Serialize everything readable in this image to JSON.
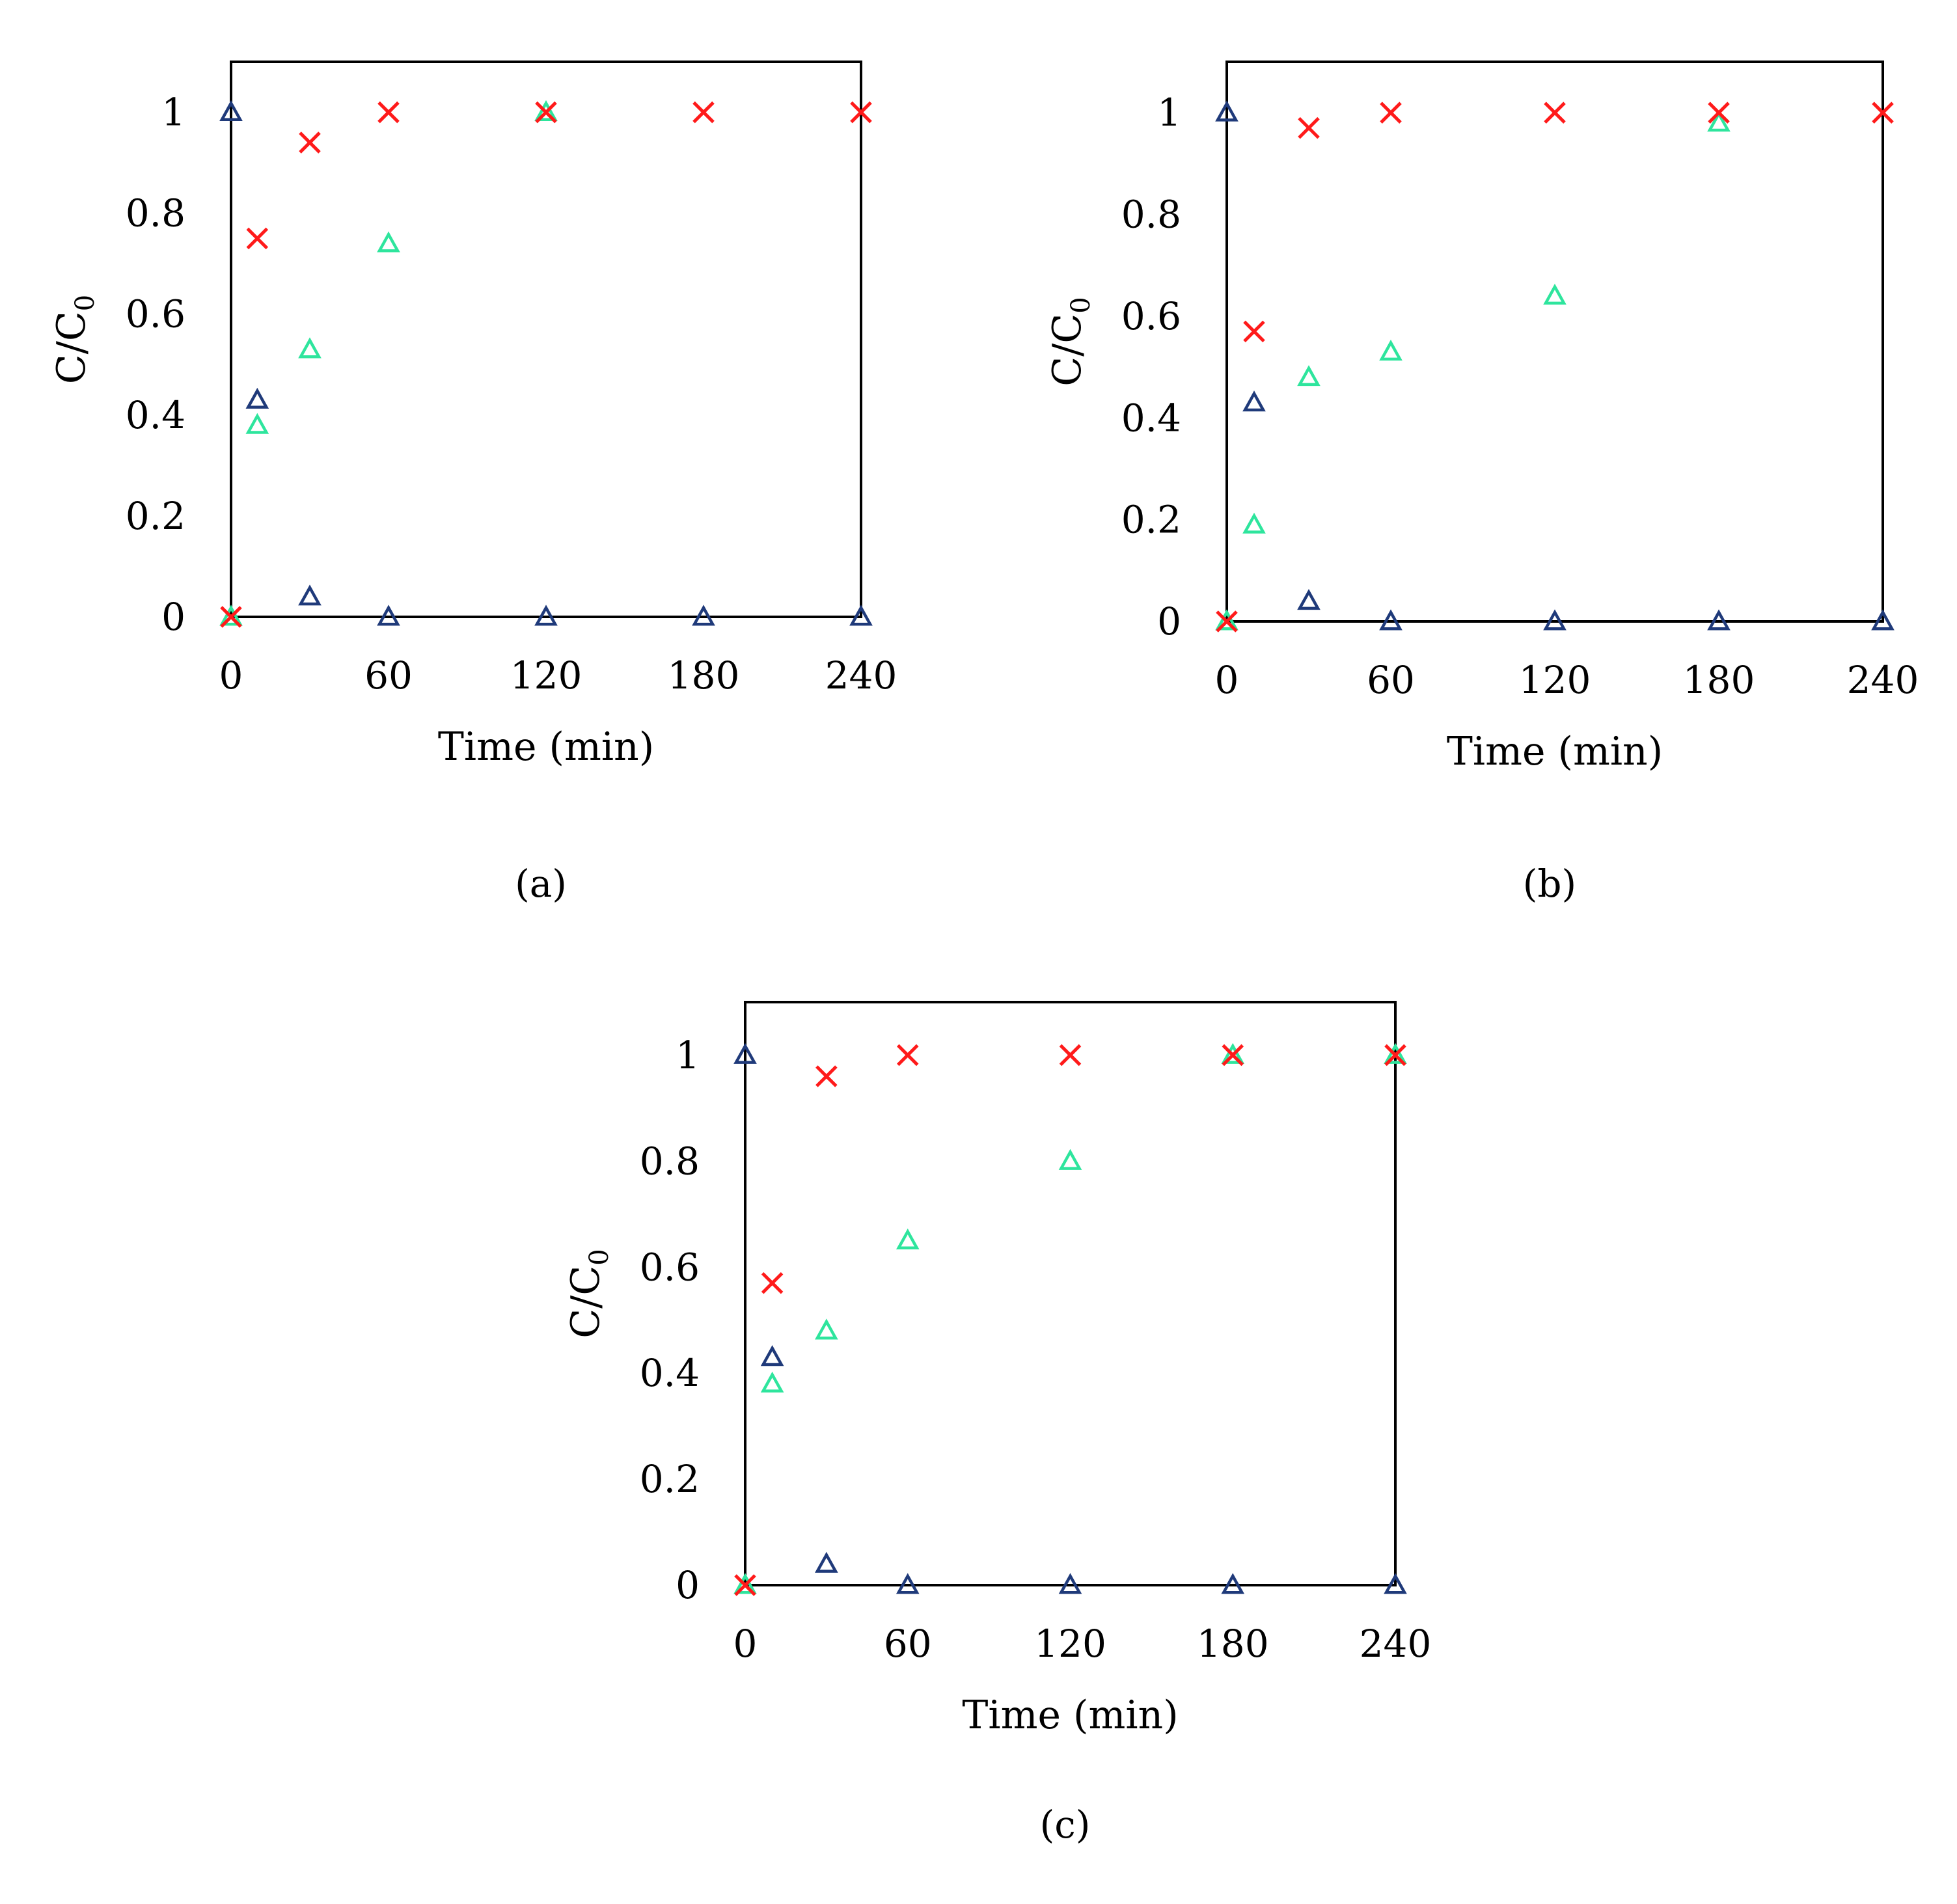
{
  "figure": {
    "colors": {
      "series_triangle_navy": "#1f3a7a",
      "series_triangle_green": "#2ee59d",
      "series_cross_red": "#ff1a1a",
      "axes": "#000000"
    }
  },
  "chart_data": [
    {
      "type": "scatter",
      "panel_label": "(a)",
      "xlabel": "Time  (min)",
      "ylabel": "C/C",
      "ylabel_subscript": "0",
      "xlim": [
        0,
        240
      ],
      "ylim": [
        0,
        1.1
      ],
      "xticks": [
        0,
        60,
        120,
        180,
        240
      ],
      "xtick_labels": [
        "0",
        "60",
        "120",
        "180",
        "240"
      ],
      "yticks": [
        0,
        0.2,
        0.4,
        0.6,
        0.8,
        1
      ],
      "ytick_labels": [
        "0",
        "0.2",
        "0.4",
        "0.6",
        "0.8",
        "1"
      ],
      "grid": false,
      "series": [
        {
          "marker": "triangle-open",
          "color": "#1f3a7a",
          "points": [
            [
              0,
              1.0
            ],
            [
              10,
              0.43
            ],
            [
              30,
              0.04
            ],
            [
              60,
              0.0
            ],
            [
              120,
              0.0
            ],
            [
              180,
              0.0
            ],
            [
              240,
              0.0
            ]
          ]
        },
        {
          "marker": "triangle-open",
          "color": "#2ee59d",
          "points": [
            [
              0,
              0.0
            ],
            [
              10,
              0.38
            ],
            [
              30,
              0.53
            ],
            [
              60,
              0.74
            ],
            [
              120,
              1.0
            ]
          ]
        },
        {
          "marker": "cross",
          "color": "#ff1a1a",
          "points": [
            [
              0,
              0.0
            ],
            [
              10,
              0.75
            ],
            [
              30,
              0.94
            ],
            [
              60,
              1.0
            ],
            [
              120,
              1.0
            ],
            [
              180,
              1.0
            ],
            [
              240,
              1.0
            ]
          ]
        }
      ]
    },
    {
      "type": "scatter",
      "panel_label": "(b)",
      "xlabel": "Time  (min)",
      "ylabel": "C/C",
      "ylabel_subscript": "0",
      "xlim": [
        0,
        240
      ],
      "ylim": [
        0,
        1.1
      ],
      "xticks": [
        0,
        60,
        120,
        180,
        240
      ],
      "xtick_labels": [
        "0",
        "60",
        "120",
        "180",
        "240"
      ],
      "yticks": [
        0,
        0.2,
        0.4,
        0.6,
        0.8,
        1
      ],
      "ytick_labels": [
        "0",
        "0.2",
        "0.4",
        "0.6",
        "0.8",
        "1"
      ],
      "grid": false,
      "series": [
        {
          "marker": "triangle-open",
          "color": "#1f3a7a",
          "points": [
            [
              0,
              1.0
            ],
            [
              10,
              0.43
            ],
            [
              30,
              0.04
            ],
            [
              60,
              0.0
            ],
            [
              120,
              0.0
            ],
            [
              180,
              0.0
            ],
            [
              240,
              0.0
            ]
          ]
        },
        {
          "marker": "triangle-open",
          "color": "#2ee59d",
          "points": [
            [
              0,
              0.0
            ],
            [
              10,
              0.19
            ],
            [
              30,
              0.48
            ],
            [
              60,
              0.53
            ],
            [
              120,
              0.64
            ],
            [
              180,
              0.98
            ]
          ]
        },
        {
          "marker": "cross",
          "color": "#ff1a1a",
          "points": [
            [
              0,
              0.0
            ],
            [
              10,
              0.57
            ],
            [
              30,
              0.97
            ],
            [
              60,
              1.0
            ],
            [
              120,
              1.0
            ],
            [
              180,
              1.0
            ],
            [
              240,
              1.0
            ]
          ]
        }
      ]
    },
    {
      "type": "scatter",
      "panel_label": "(c)",
      "xlabel": "Time  (min)",
      "ylabel": "C/C",
      "ylabel_subscript": "0",
      "xlim": [
        0,
        240
      ],
      "ylim": [
        0,
        1.1
      ],
      "xticks": [
        0,
        60,
        120,
        180,
        240
      ],
      "xtick_labels": [
        "0",
        "60",
        "120",
        "180",
        "240"
      ],
      "yticks": [
        0,
        0.2,
        0.4,
        0.6,
        0.8,
        1
      ],
      "ytick_labels": [
        "0",
        "0.2",
        "0.4",
        "0.6",
        "0.8",
        "1"
      ],
      "grid": false,
      "series": [
        {
          "marker": "triangle-open",
          "color": "#1f3a7a",
          "points": [
            [
              0,
              1.0
            ],
            [
              10,
              0.43
            ],
            [
              30,
              0.04
            ],
            [
              60,
              0.0
            ],
            [
              120,
              0.0
            ],
            [
              180,
              0.0
            ],
            [
              240,
              0.0
            ]
          ]
        },
        {
          "marker": "triangle-open",
          "color": "#2ee59d",
          "points": [
            [
              0,
              0.0
            ],
            [
              10,
              0.38
            ],
            [
              30,
              0.48
            ],
            [
              60,
              0.65
            ],
            [
              120,
              0.8
            ],
            [
              180,
              1.0
            ],
            [
              240,
              1.0
            ]
          ]
        },
        {
          "marker": "cross",
          "color": "#ff1a1a",
          "points": [
            [
              0,
              0.0
            ],
            [
              10,
              0.57
            ],
            [
              30,
              0.96
            ],
            [
              60,
              1.0
            ],
            [
              120,
              1.0
            ],
            [
              180,
              1.0
            ],
            [
              240,
              1.0
            ]
          ]
        }
      ]
    }
  ]
}
